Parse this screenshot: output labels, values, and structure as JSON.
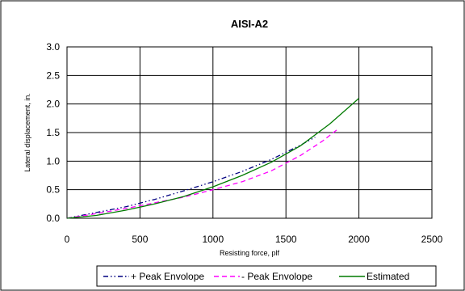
{
  "chart_data": {
    "type": "line",
    "title": "AISI-A2",
    "xlabel": "Resisting force, plf",
    "ylabel": "Lateral displacement, in.",
    "xlim": [
      0,
      2500
    ],
    "ylim": [
      0,
      3.0
    ],
    "xticks": [
      "0",
      "500",
      "1000",
      "1500",
      "2000",
      "2500"
    ],
    "yticks": [
      "0.0",
      "0.5",
      "1.0",
      "1.5",
      "2.0",
      "2.5",
      "3.0"
    ],
    "grid": true,
    "legend_position": "bottom",
    "series": [
      {
        "name": "+ Peak Envolope",
        "color": "#000080",
        "dash": "dash-dot-dot",
        "points": [
          [
            0,
            0
          ],
          [
            200,
            0.1
          ],
          [
            400,
            0.2
          ],
          [
            600,
            0.33
          ],
          [
            800,
            0.48
          ],
          [
            1000,
            0.64
          ],
          [
            1200,
            0.82
          ],
          [
            1400,
            1.03
          ],
          [
            1600,
            1.28
          ],
          [
            1700,
            1.42
          ]
        ]
      },
      {
        "name": "- Peak Envolope",
        "color": "#ff00ff",
        "dash": "dash",
        "points": [
          [
            0,
            0
          ],
          [
            200,
            0.08
          ],
          [
            400,
            0.17
          ],
          [
            600,
            0.27
          ],
          [
            800,
            0.37
          ],
          [
            1000,
            0.5
          ],
          [
            1200,
            0.64
          ],
          [
            1400,
            0.83
          ],
          [
            1600,
            1.1
          ],
          [
            1750,
            1.35
          ],
          [
            1850,
            1.55
          ]
        ]
      },
      {
        "name": "Estimated",
        "color": "#007a00",
        "dash": "solid",
        "points": [
          [
            0,
            0
          ],
          [
            200,
            0.05
          ],
          [
            400,
            0.14
          ],
          [
            600,
            0.25
          ],
          [
            800,
            0.38
          ],
          [
            1000,
            0.55
          ],
          [
            1200,
            0.75
          ],
          [
            1400,
            0.98
          ],
          [
            1600,
            1.27
          ],
          [
            1800,
            1.65
          ],
          [
            2000,
            2.1
          ]
        ]
      }
    ]
  }
}
